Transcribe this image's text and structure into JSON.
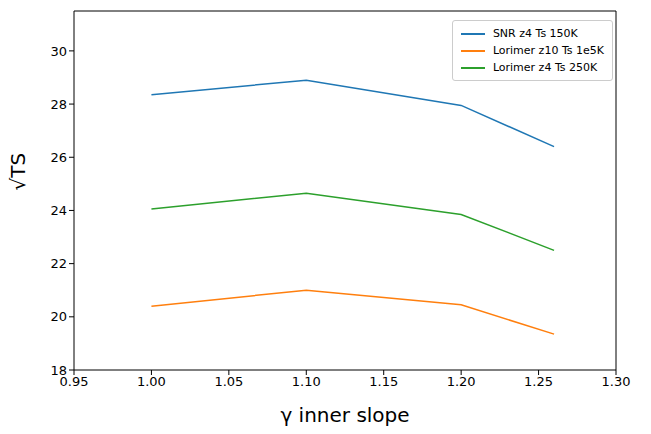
{
  "chart_data": {
    "type": "line",
    "x_label": "γ inner slope",
    "y_label": "√TS",
    "x": [
      1.0,
      1.1,
      1.2,
      1.26
    ],
    "series": [
      {
        "name": "SNR z4 Ts 150K",
        "color": "#1f77b4",
        "values": [
          28.35,
          28.9,
          27.95,
          26.4
        ]
      },
      {
        "name": "Lorimer z10 Ts 1e5K",
        "color": "#ff7f0e",
        "values": [
          20.4,
          21.0,
          20.45,
          19.35
        ]
      },
      {
        "name": "Lorimer z4 Ts 250K",
        "color": "#2ca02c",
        "values": [
          24.05,
          24.65,
          23.85,
          22.5
        ]
      }
    ],
    "xlim": [
      0.95,
      1.3
    ],
    "xticks": [
      0.95,
      {
        "value": 1,
        "label": "1.00"
      },
      1.05,
      {
        "value": 1.1,
        "label": "1.10"
      },
      1.15,
      {
        "value": 1.2,
        "label": "1.20"
      },
      1.25,
      {
        "value": 1.3,
        "label": "1.30"
      }
    ],
    "ylim": [
      18,
      31.5
    ],
    "yticks": [
      18,
      20,
      22,
      24,
      26,
      28,
      30
    ],
    "grid": false,
    "legend": "upper right"
  }
}
